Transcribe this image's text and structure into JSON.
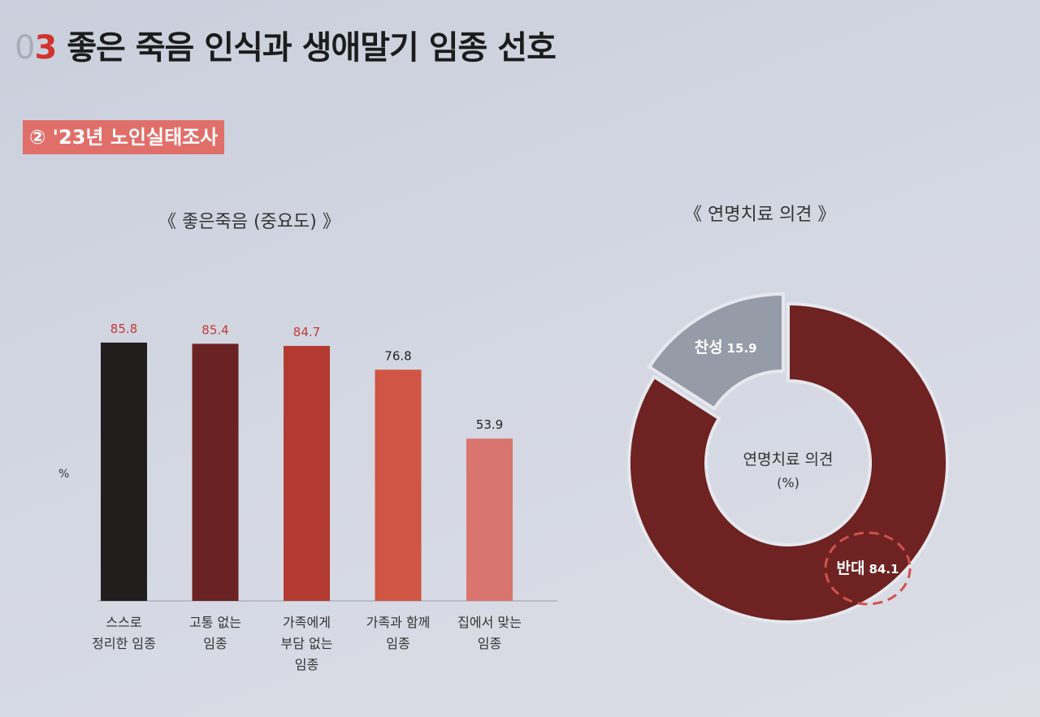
{
  "header": {
    "section_number_a": "0",
    "section_number_b": "3",
    "title": "좋은 죽음 인식과 생애말기 임종 선호",
    "subtitle": "② '23년 노인실태조사"
  },
  "colors": {
    "accent": "#d2322d",
    "badge": "#e06f6a",
    "donut_oppose": "#6e2222",
    "donut_favor": "#959ba7"
  },
  "chart_data": [
    {
      "type": "bar",
      "title": "《 좋은죽음 (중요도) 》",
      "ylabel": "%",
      "ylim": [
        0,
        100
      ],
      "categories": [
        [
          "스스로",
          "정리한 임종"
        ],
        [
          "고통 없는",
          "임종"
        ],
        [
          "가족에게",
          "부담 없는",
          "임종"
        ],
        [
          "가족과 함께",
          "임종"
        ],
        [
          "집에서 맞는",
          "임종"
        ]
      ],
      "values": [
        85.8,
        85.4,
        84.7,
        76.8,
        53.9
      ],
      "value_labels": [
        "85.8",
        "85.4",
        "84.7",
        "76.8",
        "53.9"
      ],
      "bar_colors": [
        "#231e1e",
        "#6b2222",
        "#b23a30",
        "#d05545",
        "#d9756e"
      ],
      "label_colors": [
        "#c23a36",
        "#c23a36",
        "#c23a36",
        "#222222",
        "#222222"
      ]
    },
    {
      "type": "pie",
      "title": "《 연명치료 의견 》",
      "center_label": [
        "연명치료 의견",
        "(%)"
      ],
      "slices": [
        {
          "name": "반대",
          "value": 84.1,
          "value_label": "84.1",
          "color": "#6e2222"
        },
        {
          "name": "찬성",
          "value": 15.9,
          "value_label": "15.9",
          "color": "#959ba7"
        }
      ]
    }
  ]
}
